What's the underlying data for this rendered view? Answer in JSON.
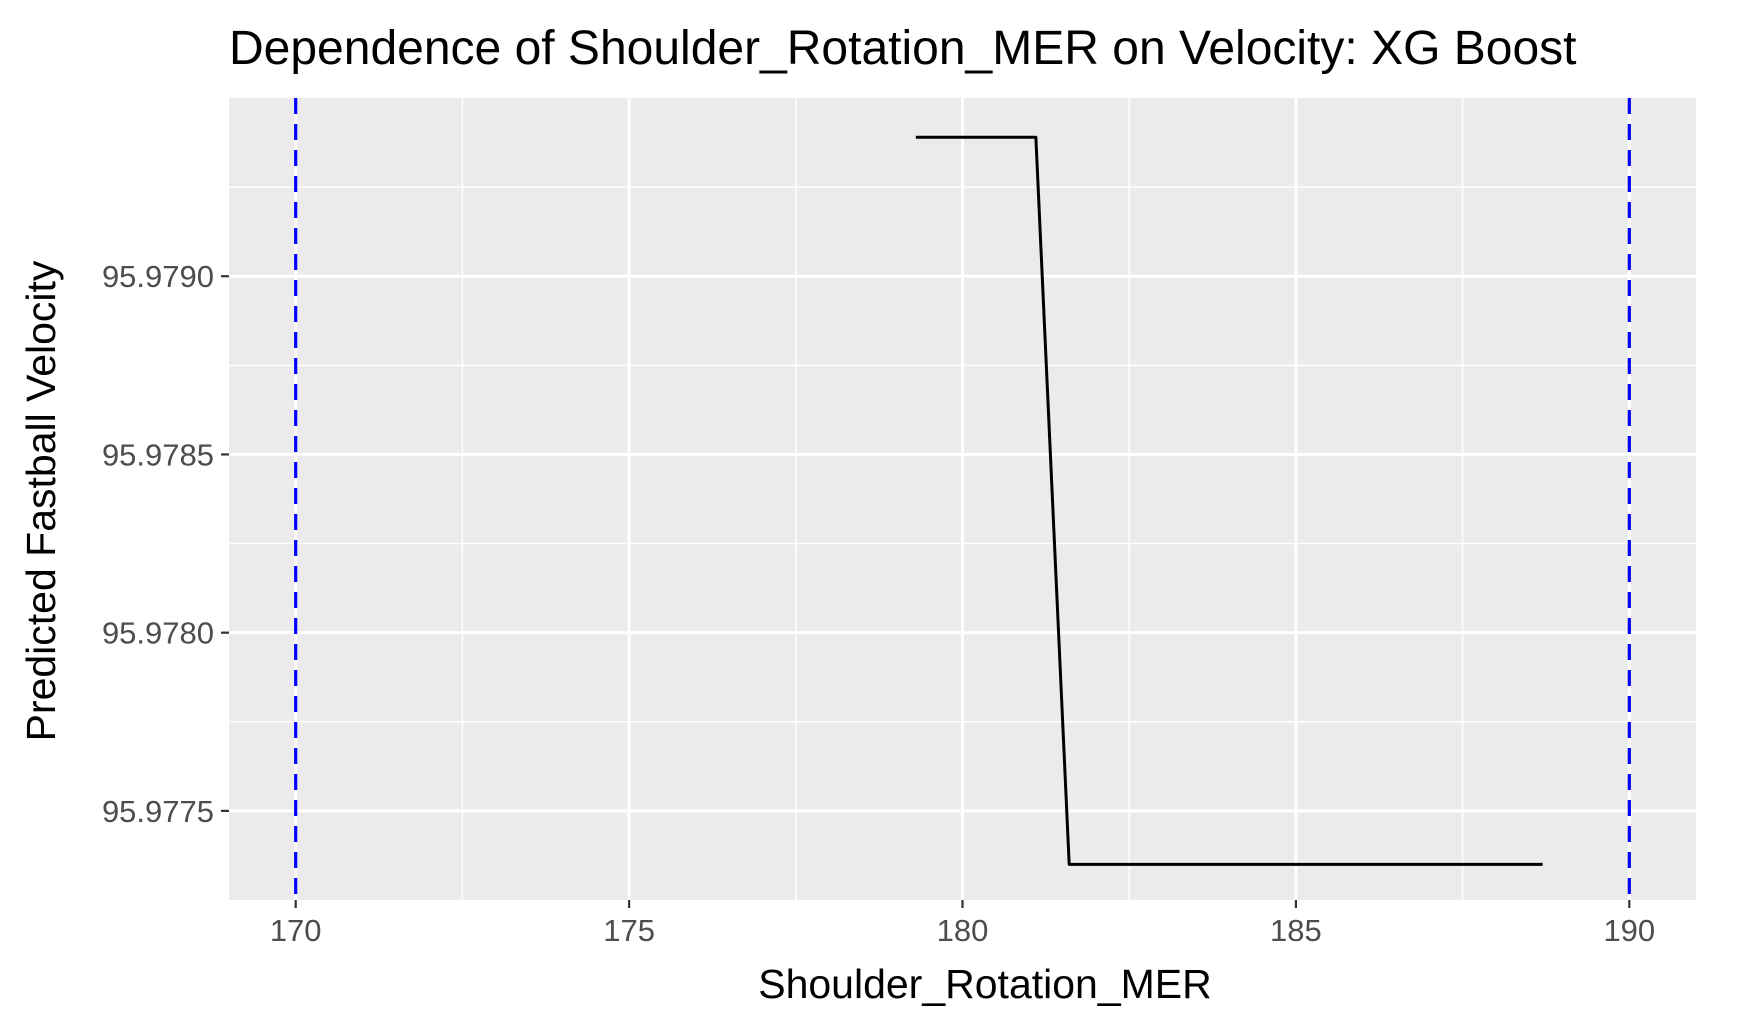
{
  "chart_data": {
    "type": "line",
    "title": "Dependence of Shoulder_Rotation_MER on Velocity: XG Boost",
    "xlabel": "Shoulder_Rotation_MER",
    "ylabel": "Predicted Fastball Velocity",
    "xlim": [
      169.0,
      191.0
    ],
    "ylim": [
      95.97725,
      95.9795
    ],
    "x_ticks": [
      170,
      175,
      180,
      185,
      190
    ],
    "x_tick_labels": [
      "170",
      "175",
      "180",
      "185",
      "190"
    ],
    "x_minor_ticks": [
      172.5,
      177.5,
      182.5,
      187.5
    ],
    "y_ticks": [
      95.9775,
      95.978,
      95.9785,
      95.979
    ],
    "y_tick_labels": [
      "95.9775",
      "95.9780",
      "95.9785",
      "95.9790"
    ],
    "y_minor_ticks": [
      95.97775,
      95.97825,
      95.97875,
      95.97925
    ],
    "grid": true,
    "series": [
      {
        "color": "#000000",
        "x": [
          179.3,
          181.1,
          181.6,
          188.7
        ],
        "y": [
          95.97939,
          95.97939,
          95.97735,
          95.97735
        ]
      }
    ],
    "reference_lines": [
      {
        "axis": "x",
        "value": 170,
        "style": "dashed",
        "color": "#0000ff"
      },
      {
        "axis": "x",
        "value": 190,
        "style": "dashed",
        "color": "#0000ff"
      }
    ],
    "colors": {
      "panel_background": "#ebebeb",
      "grid_line": "#ffffff",
      "tick_mark": "#333333",
      "tick_label": "#4d4d4d"
    }
  }
}
